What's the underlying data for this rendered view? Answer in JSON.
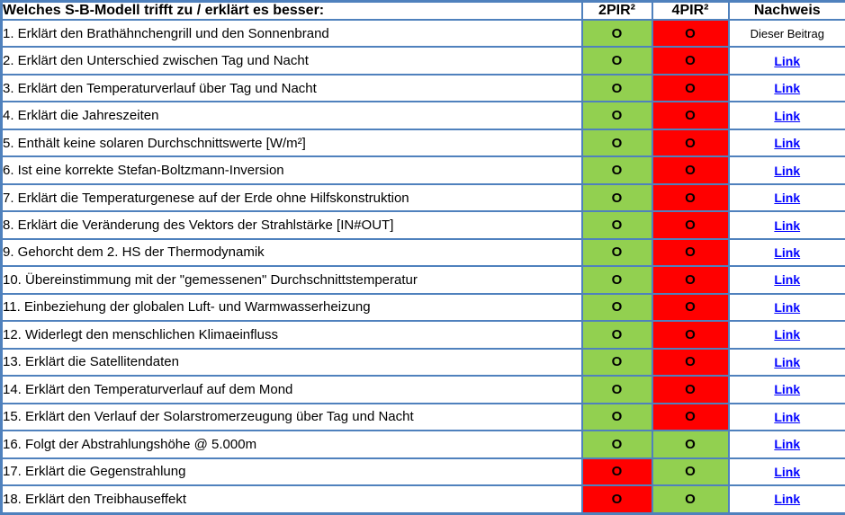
{
  "table": {
    "header": {
      "question": "Welches S-B-Modell trifft zu / erklärt es besser:",
      "col_2pir": "2PIR²",
      "col_4pir": "4PIR²",
      "col_nachweis": "Nachweis"
    },
    "marker": "O",
    "colors": {
      "green": "#92D050",
      "red": "#FF0000",
      "border": "#4F81BD",
      "link_blue": "#0000FF"
    },
    "rows": [
      {
        "statement": "1. Erklärt den Brathähnchengrill und den Sonnenbrand",
        "pir2": "green",
        "pir4": "red",
        "nachweis": "Dieser Beitrag",
        "is_link": false
      },
      {
        "statement": "2. Erklärt den Unterschied zwischen Tag und Nacht",
        "pir2": "green",
        "pir4": "red",
        "nachweis": "Link",
        "is_link": true
      },
      {
        "statement": "3. Erklärt den Temperaturverlauf über Tag und Nacht",
        "pir2": "green",
        "pir4": "red",
        "nachweis": "Link",
        "is_link": true
      },
      {
        "statement": "4. Erklärt die Jahreszeiten",
        "pir2": "green",
        "pir4": "red",
        "nachweis": "Link",
        "is_link": true
      },
      {
        "statement": "5. Enthält keine solaren Durchschnittswerte [W/m²]",
        "pir2": "green",
        "pir4": "red",
        "nachweis": "Link",
        "is_link": true
      },
      {
        "statement": "6. Ist eine korrekte Stefan-Boltzmann-Inversion",
        "pir2": "green",
        "pir4": "red",
        "nachweis": "Link",
        "is_link": true
      },
      {
        "statement": "7. Erklärt die Temperaturgenese auf der Erde ohne Hilfskonstruktion",
        "pir2": "green",
        "pir4": "red",
        "nachweis": "Link",
        "is_link": true
      },
      {
        "statement": "8. Erklärt die Veränderung des Vektors der Strahlstärke [IN#OUT]",
        "pir2": "green",
        "pir4": "red",
        "nachweis": "Link",
        "is_link": true
      },
      {
        "statement": "9. Gehorcht dem 2. HS der Thermodynamik",
        "pir2": "green",
        "pir4": "red",
        "nachweis": "Link",
        "is_link": true
      },
      {
        "statement": "10. Übereinstimmung mit der \"gemessenen\" Durchschnittstemperatur",
        "pir2": "green",
        "pir4": "red",
        "nachweis": "Link",
        "is_link": true
      },
      {
        "statement": "11. Einbeziehung der globalen Luft- und Warmwasserheizung",
        "pir2": "green",
        "pir4": "red",
        "nachweis": "Link",
        "is_link": true
      },
      {
        "statement": "12. Widerlegt den menschlichen Klimaeinfluss",
        "pir2": "green",
        "pir4": "red",
        "nachweis": "Link",
        "is_link": true
      },
      {
        "statement": "13. Erklärt die Satellitendaten",
        "pir2": "green",
        "pir4": "red",
        "nachweis": "Link",
        "is_link": true
      },
      {
        "statement": "14. Erklärt den Temperaturverlauf auf dem Mond",
        "pir2": "green",
        "pir4": "red",
        "nachweis": "Link",
        "is_link": true
      },
      {
        "statement": "15. Erklärt den Verlauf der Solarstromerzeugung über Tag und Nacht",
        "pir2": "green",
        "pir4": "red",
        "nachweis": "Link",
        "is_link": true
      },
      {
        "statement": "16. Folgt der Abstrahlungshöhe @ 5.000m",
        "pir2": "green",
        "pir4": "green",
        "nachweis": "Link",
        "is_link": true
      },
      {
        "statement": "17. Erklärt die Gegenstrahlung",
        "pir2": "red",
        "pir4": "green",
        "nachweis": "Link",
        "is_link": true
      },
      {
        "statement": "18. Erklärt den Treibhauseffekt",
        "pir2": "red",
        "pir4": "green",
        "nachweis": "Link",
        "is_link": true
      }
    ]
  }
}
